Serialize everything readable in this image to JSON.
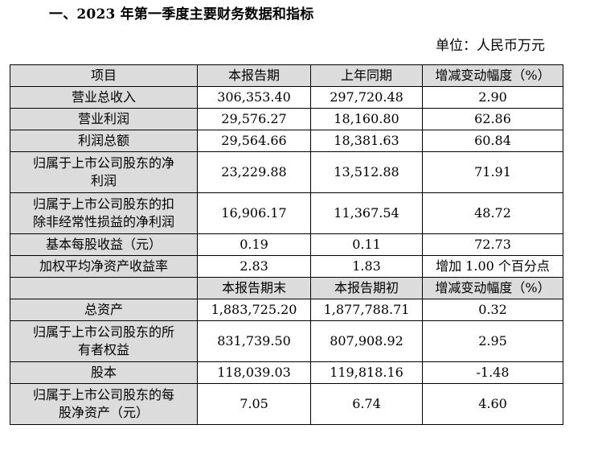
{
  "heading": "一、2023 年第一季度主要财务数据和指标",
  "unit": "单位：人民币万元",
  "table": {
    "header1": [
      "项目",
      "本报告期",
      "上年同期",
      "增减变动幅度（%）"
    ],
    "rows1": [
      {
        "label_lines": [
          "营业总收入"
        ],
        "current": "306,353.40",
        "prior": "297,720.48",
        "change": "2.90"
      },
      {
        "label_lines": [
          "营业利润"
        ],
        "current": "29,576.27",
        "prior": "18,160.80",
        "change": "62.86"
      },
      {
        "label_lines": [
          "利润总额"
        ],
        "current": "29,564.66",
        "prior": "18,381.63",
        "change": "60.84"
      },
      {
        "label_lines": [
          "归属于上市公司股东的净",
          "利润"
        ],
        "current": "23,229.88",
        "prior": "13,512.88",
        "change": "71.91"
      },
      {
        "label_lines": [
          "归属于上市公司股东的扣",
          "除非经常性损益的净利润"
        ],
        "current": "16,906.17",
        "prior": "11,367.54",
        "change": "48.72"
      },
      {
        "label_lines": [
          "基本每股收益（元）"
        ],
        "current": "0.19",
        "prior": "0.11",
        "change": "72.73"
      },
      {
        "label_lines": [
          "加权平均净资产收益率"
        ],
        "current": "2.83",
        "prior": "1.83",
        "change": "增加 1.00 个百分点"
      }
    ],
    "header2": [
      "",
      "本报告期末",
      "本报告期初",
      "增减变动幅度（%）"
    ],
    "rows2": [
      {
        "label_lines": [
          "总资产"
        ],
        "current": "1,883,725.20",
        "prior": "1,877,788.71",
        "change": "0.32"
      },
      {
        "label_lines": [
          "归属于上市公司股东的所",
          "有者权益"
        ],
        "current": "831,739.50",
        "prior": "807,908.92",
        "change": "2.95"
      },
      {
        "label_lines": [
          "股本"
        ],
        "current": "118,039.03",
        "prior": "119,818.16",
        "change": "-1.48"
      },
      {
        "label_lines": [
          "归属于上市公司股东的每",
          "股净资产（元）"
        ],
        "current": "7.05",
        "prior": "6.74",
        "change": "4.60"
      }
    ]
  }
}
